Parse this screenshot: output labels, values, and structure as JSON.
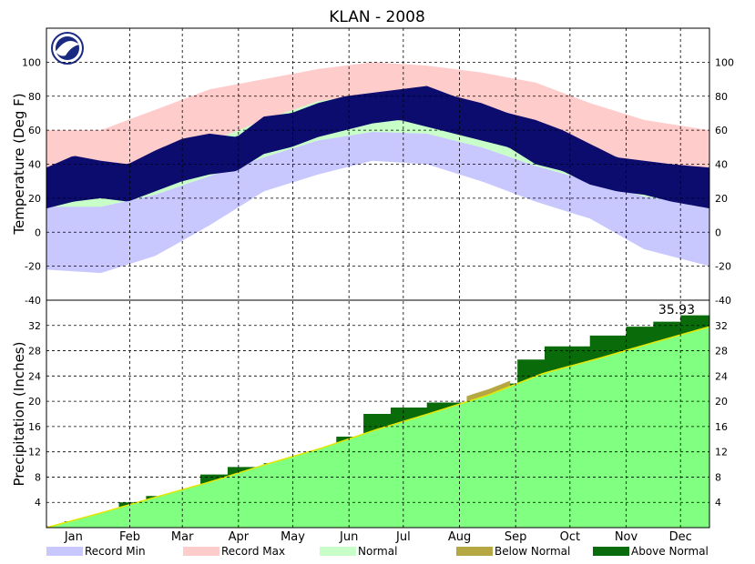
{
  "chart_data": {
    "type": "area",
    "title": "KLAN - 2008",
    "x_ticks": [
      "Jan",
      "Feb",
      "Mar",
      "Apr",
      "May",
      "Jun",
      "Jul",
      "Aug",
      "Sep",
      "Oct",
      "Nov",
      "Dec"
    ],
    "temperature": {
      "ylabel": "Temperature (Deg F)",
      "ylim": [
        -40,
        120
      ],
      "y_ticks": [
        -40,
        -20,
        0,
        20,
        40,
        60,
        80,
        100
      ],
      "normal_high": [
        [
          0,
          30
        ],
        [
          30,
          32
        ],
        [
          60,
          40
        ],
        [
          90,
          53
        ],
        [
          120,
          66
        ],
        [
          150,
          77
        ],
        [
          180,
          82
        ],
        [
          210,
          81
        ],
        [
          240,
          74
        ],
        [
          270,
          61
        ],
        [
          300,
          48
        ],
        [
          330,
          36
        ],
        [
          366,
          30
        ]
      ],
      "normal_low": [
        [
          0,
          15
        ],
        [
          30,
          15
        ],
        [
          60,
          22
        ],
        [
          90,
          33
        ],
        [
          120,
          44
        ],
        [
          150,
          54
        ],
        [
          180,
          59
        ],
        [
          210,
          58
        ],
        [
          240,
          50
        ],
        [
          270,
          39
        ],
        [
          300,
          30
        ],
        [
          330,
          21
        ],
        [
          366,
          15
        ]
      ],
      "record_high": [
        [
          0,
          60
        ],
        [
          30,
          60
        ],
        [
          60,
          72
        ],
        [
          90,
          84
        ],
        [
          120,
          90
        ],
        [
          150,
          96
        ],
        [
          180,
          100
        ],
        [
          210,
          98
        ],
        [
          240,
          94
        ],
        [
          270,
          88
        ],
        [
          300,
          76
        ],
        [
          330,
          66
        ],
        [
          366,
          60
        ]
      ],
      "record_low": [
        [
          0,
          -22
        ],
        [
          30,
          -24
        ],
        [
          60,
          -14
        ],
        [
          90,
          4
        ],
        [
          120,
          24
        ],
        [
          150,
          34
        ],
        [
          180,
          42
        ],
        [
          210,
          40
        ],
        [
          240,
          30
        ],
        [
          270,
          18
        ],
        [
          300,
          8
        ],
        [
          330,
          -10
        ],
        [
          366,
          -20
        ]
      ],
      "observed_high": [
        [
          0,
          38
        ],
        [
          15,
          45
        ],
        [
          30,
          42
        ],
        [
          45,
          40
        ],
        [
          60,
          48
        ],
        [
          75,
          55
        ],
        [
          90,
          58
        ],
        [
          105,
          56
        ],
        [
          120,
          68
        ],
        [
          135,
          70
        ],
        [
          150,
          76
        ],
        [
          165,
          80
        ],
        [
          180,
          82
        ],
        [
          195,
          84
        ],
        [
          210,
          86
        ],
        [
          225,
          80
        ],
        [
          240,
          76
        ],
        [
          255,
          70
        ],
        [
          270,
          66
        ],
        [
          285,
          60
        ],
        [
          300,
          52
        ],
        [
          315,
          44
        ],
        [
          330,
          42
        ],
        [
          345,
          40
        ],
        [
          366,
          38
        ]
      ],
      "observed_low": [
        [
          0,
          14
        ],
        [
          15,
          18
        ],
        [
          30,
          20
        ],
        [
          45,
          18
        ],
        [
          60,
          24
        ],
        [
          75,
          30
        ],
        [
          90,
          34
        ],
        [
          105,
          36
        ],
        [
          120,
          46
        ],
        [
          135,
          50
        ],
        [
          150,
          56
        ],
        [
          165,
          60
        ],
        [
          180,
          64
        ],
        [
          195,
          66
        ],
        [
          210,
          62
        ],
        [
          225,
          58
        ],
        [
          240,
          54
        ],
        [
          255,
          50
        ],
        [
          270,
          40
        ],
        [
          285,
          36
        ],
        [
          300,
          28
        ],
        [
          315,
          24
        ],
        [
          330,
          22
        ],
        [
          345,
          18
        ],
        [
          366,
          14
        ]
      ]
    },
    "precipitation": {
      "ylabel": "Precipitation (Inches)",
      "ylim": [
        0,
        36
      ],
      "y_ticks": [
        4,
        8,
        12,
        16,
        20,
        24,
        28,
        32
      ],
      "total_label": "35.93",
      "normal_cumulative": [
        [
          0,
          0
        ],
        [
          31,
          2.4
        ],
        [
          60,
          4.8
        ],
        [
          91,
          7.3
        ],
        [
          121,
          10.0
        ],
        [
          152,
          12.6
        ],
        [
          182,
          15.5
        ],
        [
          213,
          18.2
        ],
        [
          244,
          21.0
        ],
        [
          274,
          24.4
        ],
        [
          305,
          26.8
        ],
        [
          335,
          29.3
        ],
        [
          366,
          31.8
        ]
      ],
      "observed_cumulative": [
        [
          0,
          0.2
        ],
        [
          10,
          1.0
        ],
        [
          25,
          1.6
        ],
        [
          30,
          2.2
        ],
        [
          40,
          4.0
        ],
        [
          55,
          5.0
        ],
        [
          70,
          5.6
        ],
        [
          80,
          6.3
        ],
        [
          85,
          8.4
        ],
        [
          100,
          9.6
        ],
        [
          120,
          10.2
        ],
        [
          140,
          11.5
        ],
        [
          150,
          12.0
        ],
        [
          160,
          14.4
        ],
        [
          175,
          18.0
        ],
        [
          190,
          19.0
        ],
        [
          210,
          19.8
        ],
        [
          235,
          20.5
        ],
        [
          240,
          20.3
        ],
        [
          250,
          21.3
        ],
        [
          254,
          22.8
        ],
        [
          260,
          26.6
        ],
        [
          275,
          28.7
        ],
        [
          300,
          30.4
        ],
        [
          320,
          31.8
        ],
        [
          335,
          32.6
        ],
        [
          350,
          33.6
        ],
        [
          366,
          35.93
        ]
      ]
    },
    "legend": [
      "Record Min",
      "Record Max",
      "Normal",
      "Below Normal",
      "Above Normal"
    ],
    "colors": {
      "record_min": "#c8c8ff",
      "record_max": "#ffcccc",
      "normal": "#c8ffc8",
      "observed": "#0c0c6e",
      "below_normal": "#b5a842",
      "above_normal": "#0a6b0a",
      "normal_precip": "#80ff80",
      "normal_precip_line": "#e6e600"
    }
  }
}
